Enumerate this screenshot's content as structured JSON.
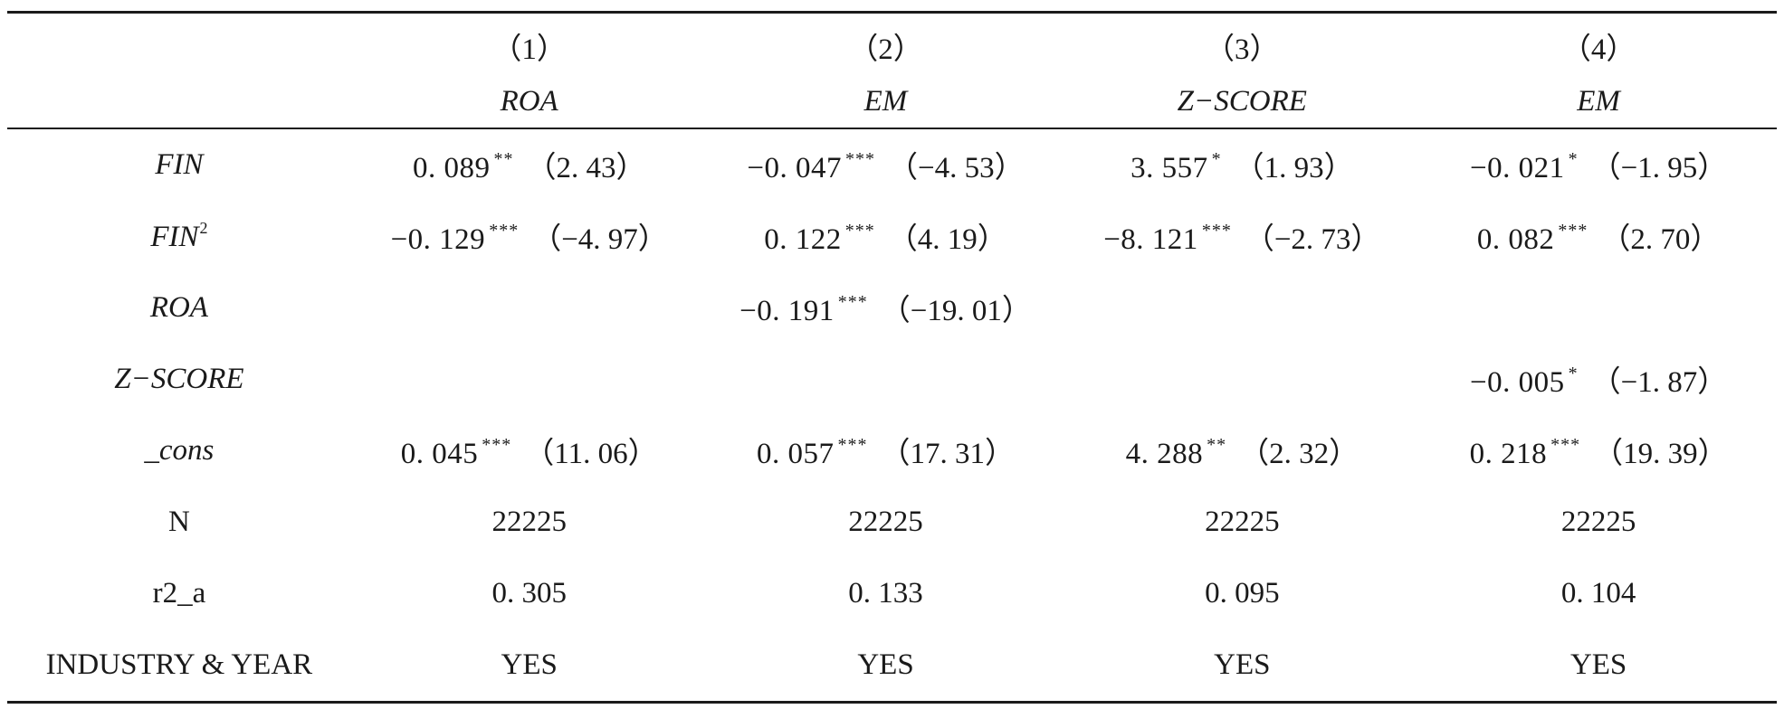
{
  "table": {
    "columns": [
      {
        "num": "（1）",
        "var": "ROA"
      },
      {
        "num": "（2）",
        "var": "EM"
      },
      {
        "num": "（3）",
        "var": "Z−SCORE"
      },
      {
        "num": "（4）",
        "var": "EM"
      }
    ],
    "rows": [
      {
        "label": "FIN",
        "label_sup": "",
        "cells": [
          {
            "coef": "0. 089",
            "stars": "**",
            "t": "（2. 43）"
          },
          {
            "coef": "−0. 047",
            "stars": "***",
            "t": "（−4. 53）"
          },
          {
            "coef": "3. 557",
            "stars": "*",
            "t": "（1. 93）"
          },
          {
            "coef": "−0. 021",
            "stars": "*",
            "t": "（−1. 95）"
          }
        ]
      },
      {
        "label": "FIN",
        "label_sup": "2",
        "cells": [
          {
            "coef": "−0. 129",
            "stars": "***",
            "t": "（−4. 97）"
          },
          {
            "coef": "0. 122",
            "stars": "***",
            "t": "（4. 19）"
          },
          {
            "coef": "−8. 121",
            "stars": "***",
            "t": "（−2. 73）"
          },
          {
            "coef": "0. 082",
            "stars": "***",
            "t": "（2. 70）"
          }
        ]
      },
      {
        "label": "ROA",
        "label_sup": "",
        "cells": [
          {
            "coef": "",
            "stars": "",
            "t": ""
          },
          {
            "coef": "−0. 191",
            "stars": "***",
            "t": "（−19. 01）"
          },
          {
            "coef": "",
            "stars": "",
            "t": ""
          },
          {
            "coef": "",
            "stars": "",
            "t": ""
          }
        ]
      },
      {
        "label": "Z−SCORE",
        "label_sup": "",
        "cells": [
          {
            "coef": "",
            "stars": "",
            "t": ""
          },
          {
            "coef": "",
            "stars": "",
            "t": ""
          },
          {
            "coef": "",
            "stars": "",
            "t": ""
          },
          {
            "coef": "−0. 005",
            "stars": "*",
            "t": "（−1. 87）"
          }
        ]
      },
      {
        "label": "_cons",
        "label_sup": "",
        "cells": [
          {
            "coef": "0. 045",
            "stars": "***",
            "t": "（11. 06）"
          },
          {
            "coef": "0. 057",
            "stars": "***",
            "t": "（17. 31）"
          },
          {
            "coef": "4. 288",
            "stars": "**",
            "t": "（2. 32）"
          },
          {
            "coef": "0. 218",
            "stars": "***",
            "t": "（19. 39）"
          }
        ]
      }
    ],
    "stats": [
      {
        "label": "N",
        "values": [
          "22225",
          "22225",
          "22225",
          "22225"
        ]
      },
      {
        "label": "r2_a",
        "values": [
          "0. 305",
          "0. 133",
          "0. 095",
          "0. 104"
        ]
      },
      {
        "label": "INDUSTRY & YEAR",
        "values": [
          "YES",
          "YES",
          "YES",
          "YES"
        ]
      }
    ]
  }
}
